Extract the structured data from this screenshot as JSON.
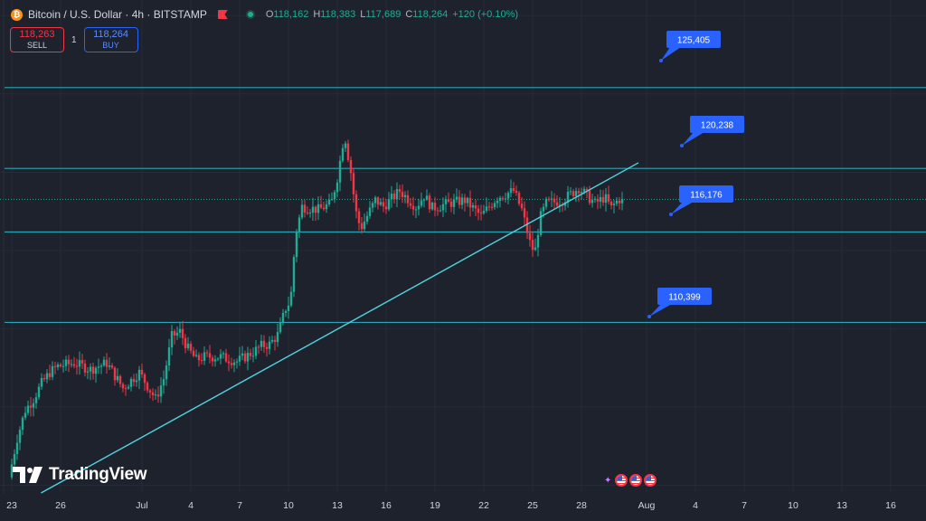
{
  "header": {
    "symbol_title": "Bitcoin / U.S. Dollar · 4h · BITSTAMP",
    "btc_icon_glyph": "₿",
    "ohlc": {
      "o_label": "O",
      "o_value": "118,162",
      "h_label": "H",
      "h_value": "118,383",
      "l_label": "L",
      "l_value": "117,689",
      "c_label": "C",
      "c_value": "118,264",
      "change": "+120 (+0.10%)"
    }
  },
  "trade": {
    "sell_price": "118,263",
    "sell_label": "SELL",
    "spread": "1",
    "buy_price": "118,264",
    "buy_label": "BUY"
  },
  "branding": {
    "logo_text": "TradingView"
  },
  "colors": {
    "background": "#1e222d",
    "up": "#22ab94",
    "down": "#f23645",
    "level_line": "#26a7b5",
    "trend_line": "#4fd4e0",
    "label_bg": "#2962ff"
  },
  "chart_data": {
    "type": "candlestick",
    "symbol": "BTCUSD",
    "interval": "4h",
    "x_ticks": [
      "23",
      "26",
      "Jul",
      "4",
      "7",
      "10",
      "13",
      "16",
      "19",
      "22",
      "25",
      "28",
      "Aug",
      "4",
      "7",
      "10",
      "13",
      "16"
    ],
    "x_tick_days": [
      23,
      26,
      31,
      34,
      37,
      40,
      43,
      46,
      49,
      52,
      55,
      58,
      62,
      65,
      68,
      71,
      74,
      77
    ],
    "x_range_days": [
      22.7,
      78.5
    ],
    "y_range": [
      99500,
      131000
    ],
    "path_days": [
      23.0,
      23.5,
      24.0,
      24.5,
      25.0,
      25.5,
      26.0,
      27.0,
      28.0,
      29.0,
      30.0,
      31.0,
      32.0,
      32.5,
      33.0,
      33.5,
      34.0,
      34.5,
      35.0,
      36.0,
      37.0,
      38.0,
      38.5,
      39.0,
      39.5,
      40.0,
      40.3,
      40.6,
      41.0,
      42.0,
      42.8,
      43.2,
      43.6,
      44.0,
      44.3,
      44.6,
      45.0,
      45.5,
      46.0,
      47.0,
      48.0,
      48.5,
      49.0,
      50.0,
      51.0,
      52.0,
      53.0,
      54.0,
      54.5,
      55.0,
      55.3,
      55.6,
      56.0,
      57.0,
      58.0,
      59.0,
      59.6,
      60.0,
      60.3,
      60.5
    ],
    "path_prices": [
      100500,
      103000,
      104800,
      105500,
      106500,
      107200,
      107600,
      107800,
      107400,
      107800,
      106200,
      107200,
      105500,
      106800,
      109500,
      109800,
      108700,
      108000,
      108200,
      108200,
      107900,
      108500,
      108900,
      109000,
      109600,
      111300,
      111800,
      116000,
      117800,
      117600,
      118000,
      119800,
      122500,
      120000,
      117500,
      116400,
      117200,
      118200,
      117800,
      118800,
      117800,
      118500,
      117700,
      118000,
      118200,
      117200,
      118400,
      118800,
      117600,
      115500,
      114800,
      117000,
      118000,
      118200,
      119000,
      118000,
      118400,
      117700,
      118100,
      118264
    ],
    "levels": [
      {
        "price": 125405,
        "label": "125,405"
      },
      {
        "price": 120238,
        "label": "120,238"
      },
      {
        "price": 116176,
        "label": "116,176"
      },
      {
        "price": 110399,
        "label": "110,399"
      }
    ],
    "trendline": {
      "from": [
        24.8,
        99500
      ],
      "to": [
        61.5,
        120600
      ]
    },
    "current_price": 118264,
    "grid": true,
    "legend": "none"
  }
}
